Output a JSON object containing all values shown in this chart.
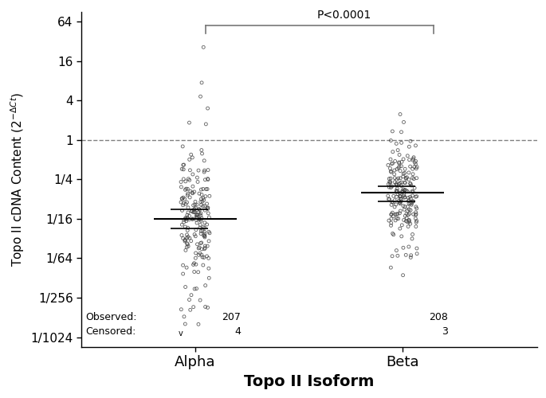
{
  "xlabel": "Topo II Isoform",
  "xtick_labels": [
    "Alpha",
    "Beta"
  ],
  "ytick_values": [
    64,
    16,
    4,
    1,
    0.25,
    0.0625,
    0.015625,
    0.00390625,
    0.0009765625
  ],
  "ytick_labels": [
    "64",
    "16",
    "4",
    "1",
    "1/4",
    "1/16",
    "1/64",
    "1/256",
    "1/1024"
  ],
  "dashed_line_y": 1.0,
  "alpha_median": 0.0625,
  "alpha_q1": 0.044,
  "alpha_q3": 0.088,
  "beta_median": 0.155,
  "beta_q1": 0.115,
  "beta_q3": 0.195,
  "alpha_observed": 207,
  "alpha_censored": 4,
  "beta_observed": 208,
  "beta_censored": 3,
  "pvalue_text": "P<0.0001",
  "dot_edgecolor": "#444444",
  "dot_size": 8,
  "background_color": "#ffffff"
}
